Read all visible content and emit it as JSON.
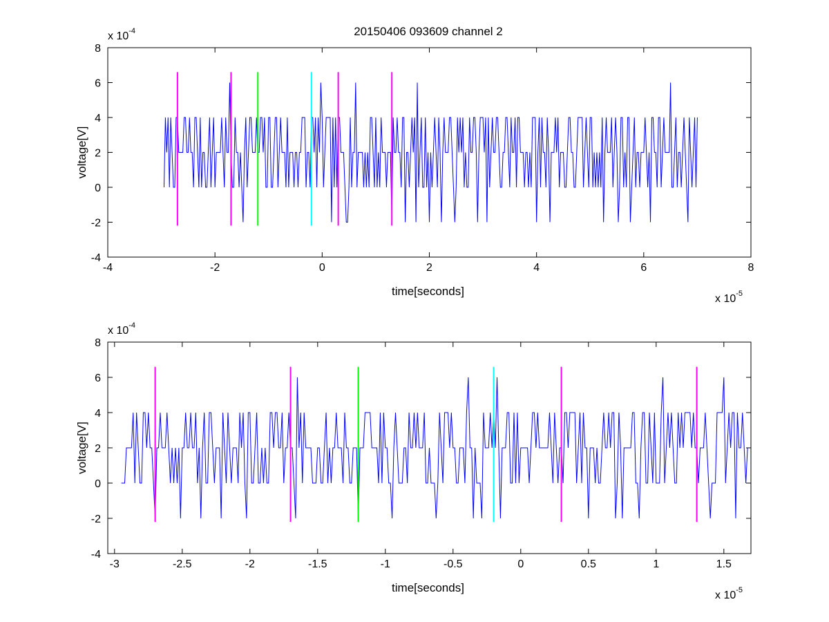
{
  "figure": {
    "title": "20150406 093609 channel 2"
  },
  "colors": {
    "signal": "#0000ff",
    "marker_magenta": "#ff00ff",
    "marker_green": "#00ff00",
    "marker_cyan": "#00ffff",
    "axis": "#000000"
  },
  "chart_data": [
    {
      "type": "line",
      "title": "20150406 093609 channel 2",
      "xlabel": "time[seconds]",
      "ylabel": "voltage[V]",
      "x_exponent_label": "x 10",
      "x_exponent": "-5",
      "y_exponent_label": "x 10",
      "y_exponent": "-4",
      "xlim": [
        -4,
        8
      ],
      "ylim": [
        -4,
        8
      ],
      "xticks": [
        -4,
        -2,
        0,
        2,
        4,
        6,
        8
      ],
      "xtick_labels": [
        "-4",
        "-2",
        "0",
        "2",
        "4",
        "6",
        "8"
      ],
      "yticks": [
        -4,
        -2,
        0,
        2,
        4,
        6,
        8
      ],
      "ytick_labels": [
        "-4",
        "-2",
        "0",
        "2",
        "4",
        "6",
        "8"
      ],
      "grid": false,
      "signal": {
        "x_range": [
          -2.95,
          7.0
        ],
        "levels": [
          -2,
          0,
          2,
          4,
          6
        ],
        "step": 0.025,
        "seed": 7
      },
      "markers": [
        {
          "x": -2.7,
          "color": "magenta",
          "y_range": [
            -2.2,
            6.6
          ]
        },
        {
          "x": -1.7,
          "color": "magenta",
          "y_range": [
            -2.2,
            6.6
          ]
        },
        {
          "x": -1.2,
          "color": "green",
          "y_range": [
            -2.2,
            6.6
          ]
        },
        {
          "x": -0.2,
          "color": "cyan",
          "y_range": [
            -2.2,
            6.6
          ]
        },
        {
          "x": 0.3,
          "color": "magenta",
          "y_range": [
            -2.2,
            6.6
          ]
        },
        {
          "x": 1.3,
          "color": "magenta",
          "y_range": [
            -2.2,
            6.6
          ]
        }
      ]
    },
    {
      "type": "line",
      "title": "",
      "xlabel": "time[seconds]",
      "ylabel": "voltage[V]",
      "x_exponent_label": "x 10",
      "x_exponent": "-5",
      "y_exponent_label": "x 10",
      "y_exponent": "-4",
      "xlim": [
        -3.05,
        1.7
      ],
      "ylim": [
        -4,
        8
      ],
      "xticks": [
        -3,
        -2.5,
        -2,
        -1.5,
        -1,
        -0.5,
        0,
        0.5,
        1,
        1.5
      ],
      "xtick_labels": [
        "-3",
        "-2.5",
        "-2",
        "-1.5",
        "-1",
        "-0.5",
        "0",
        "0.5",
        "1",
        "1.5"
      ],
      "yticks": [
        -4,
        -2,
        0,
        2,
        4,
        6,
        8
      ],
      "ytick_labels": [
        "-4",
        "-2",
        "0",
        "2",
        "4",
        "6",
        "8"
      ],
      "grid": false,
      "signal": {
        "x_range": [
          -2.95,
          1.7
        ],
        "levels": [
          -2,
          0,
          2,
          4,
          6
        ],
        "step": 0.0125,
        "seed": 21
      },
      "markers": [
        {
          "x": -2.7,
          "color": "magenta",
          "y_range": [
            -2.2,
            6.6
          ]
        },
        {
          "x": -1.7,
          "color": "magenta",
          "y_range": [
            -2.2,
            6.6
          ]
        },
        {
          "x": -1.2,
          "color": "green",
          "y_range": [
            -2.2,
            6.6
          ]
        },
        {
          "x": -0.2,
          "color": "cyan",
          "y_range": [
            -2.2,
            6.6
          ]
        },
        {
          "x": 0.3,
          "color": "magenta",
          "y_range": [
            -2.2,
            6.6
          ]
        },
        {
          "x": 1.3,
          "color": "magenta",
          "y_range": [
            -2.2,
            6.6
          ]
        }
      ]
    }
  ]
}
